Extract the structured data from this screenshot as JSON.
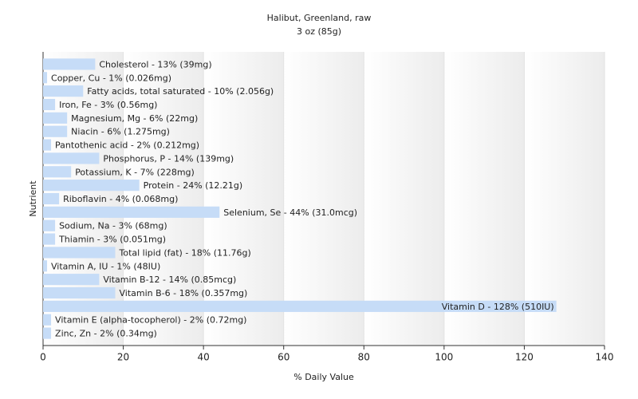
{
  "chart_data": {
    "type": "hbar",
    "title": "Halibut, Greenland, raw",
    "subtitle": "3 oz (85g)",
    "x_label": "% Daily Value",
    "y_label": "Nutrient",
    "values": [
      13,
      1,
      10,
      3,
      6,
      6,
      2,
      14,
      7,
      24,
      4,
      44,
      3,
      3,
      18,
      1,
      14,
      18,
      128,
      2,
      2
    ],
    "value_labels": [
      "Cholesterol - 13% (39mg)",
      "Copper, Cu - 1% (0.026mg)",
      "Fatty acids, total saturated - 10% (2.056g)",
      "Iron, Fe - 3% (0.56mg)",
      "Magnesium, Mg - 6% (22mg)",
      "Niacin - 6% (1.275mg)",
      "Pantothenic acid - 2% (0.212mg)",
      "Phosphorus, P - 14% (139mg)",
      "Potassium, K - 7% (228mg)",
      "Protein - 24% (12.21g)",
      "Riboflavin - 4% (0.068mg)",
      "Selenium, Se - 44% (31.0mcg)",
      "Sodium, Na - 3% (68mg)",
      "Thiamin - 3% (0.051mg)",
      "Total lipid (fat) - 18% (11.76g)",
      "Vitamin A, IU - 1% (48IU)",
      "Vitamin B-12 - 14% (0.85mcg)",
      "Vitamin B-6 - 18% (0.357mg)",
      "Vitamin D - 128% (510IU)",
      "Vitamin E (alpha-tocopherol) - 2% (0.72mg)",
      "Zinc, Zn - 2% (0.34mg)"
    ],
    "color": "#c6dcf7",
    "xlim": [
      0,
      140
    ],
    "xticks": [
      0,
      20,
      40,
      60,
      80,
      100,
      120,
      140
    ],
    "grid": true
  }
}
